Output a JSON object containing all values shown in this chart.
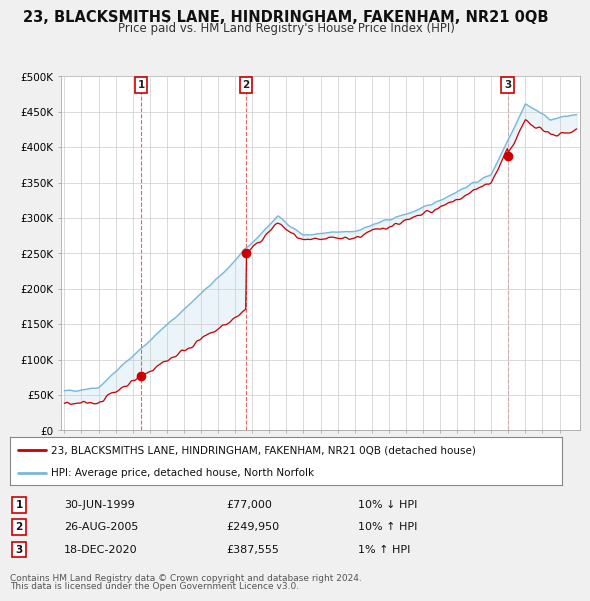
{
  "title": "23, BLACKSMITHS LANE, HINDRINGHAM, FAKENHAM, NR21 0QB",
  "subtitle": "Price paid vs. HM Land Registry's House Price Index (HPI)",
  "legend_line1": "23, BLACKSMITHS LANE, HINDRINGHAM, FAKENHAM, NR21 0QB (detached house)",
  "legend_line2": "HPI: Average price, detached house, North Norfolk",
  "footer1": "Contains HM Land Registry data © Crown copyright and database right 2024.",
  "footer2": "This data is licensed under the Open Government Licence v3.0.",
  "transactions": [
    {
      "num": 1,
      "date": "30-JUN-1999",
      "price": "£77,000",
      "change": "10% ↓ HPI",
      "year": 1999.5,
      "value": 77000
    },
    {
      "num": 2,
      "date": "26-AUG-2005",
      "price": "£249,950",
      "change": "10% ↑ HPI",
      "year": 2005.65,
      "value": 249950
    },
    {
      "num": 3,
      "date": "18-DEC-2020",
      "price": "£387,555",
      "change": "1% ↑ HPI",
      "year": 2020.96,
      "value": 387555
    }
  ],
  "hpi_color": "#7ab8d9",
  "hpi_fill_color": "#c8e0f0",
  "price_color": "#cc0000",
  "bg_color": "#f0f0f0",
  "plot_bg": "#ffffff",
  "grid_color": "#cccccc",
  "title_fontsize": 10.5,
  "subtitle_fontsize": 8.5,
  "ylabel_ticks": [
    "£0",
    "£50K",
    "£100K",
    "£150K",
    "£200K",
    "£250K",
    "£300K",
    "£350K",
    "£400K",
    "£450K",
    "£500K"
  ],
  "ytick_values": [
    0,
    50000,
    100000,
    150000,
    200000,
    250000,
    300000,
    350000,
    400000,
    450000,
    500000
  ],
  "xmin": 1994.8,
  "xmax": 2025.2,
  "ymin": 0,
  "ymax": 500000
}
